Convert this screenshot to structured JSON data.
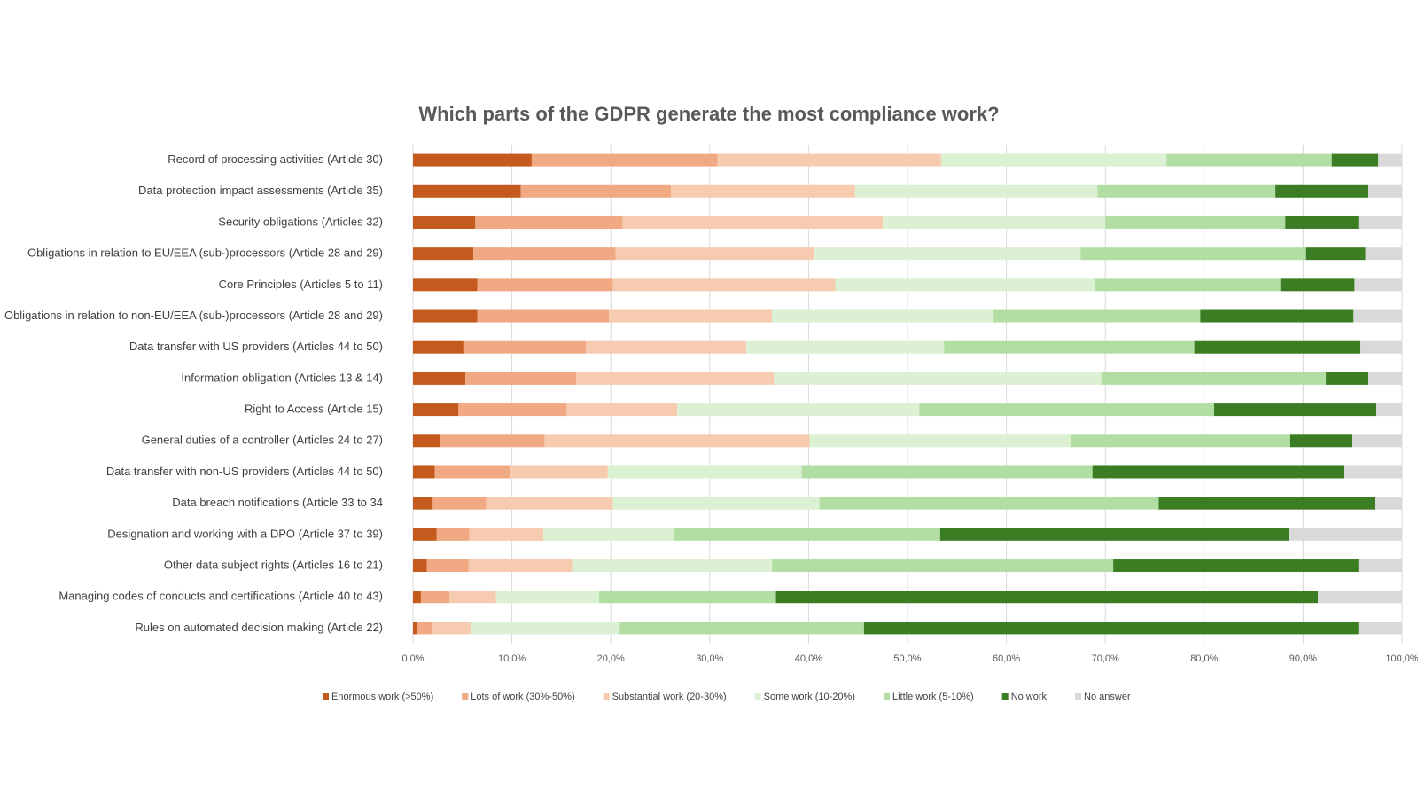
{
  "chart_data": {
    "type": "stacked_barh_100",
    "title": "Which parts of the GDPR generate the most compliance work?",
    "categories": [
      "Record of processing activities (Article 30)",
      "Data protection impact assessments (Article 35)",
      "Security obligations (Articles 32)",
      "Obligations in relation to EU/EEA (sub-)processors (Article 28 and 29)",
      "Core Principles (Articles 5 to 11)",
      "Obligations in relation to non-EU/EEA (sub-)processors (Article 28 and 29)",
      "Data transfer with US providers (Articles 44 to 50)",
      "Information obligation (Articles 13 & 14)",
      "Right to Access (Article 15)",
      "General duties of a controller (Articles 24 to 27)",
      "Data transfer with non-US providers (Articles 44 to 50)",
      "Data breach notifications (Article 33 to 34",
      "Designation and working with a DPO (Article 37 to 39)",
      "Other data subject rights (Articles 16 to 21)",
      "Managing codes of conducts and certifications (Article 40 to 43)",
      "Rules on automated decision making (Article 22)"
    ],
    "series": [
      {
        "name": "Enormous work (>50%)",
        "color": "#c55a1e",
        "values": [
          12.0,
          10.9,
          6.3,
          6.1,
          6.5,
          6.5,
          5.1,
          5.3,
          4.6,
          2.7,
          2.2,
          2.0,
          2.4,
          1.4,
          0.8,
          0.4
        ]
      },
      {
        "name": "Lots of work (30%-50%)",
        "color": "#f0a983",
        "values": [
          18.8,
          15.2,
          14.9,
          14.4,
          13.7,
          13.3,
          12.4,
          11.2,
          10.9,
          10.6,
          7.6,
          5.4,
          3.3,
          4.2,
          2.9,
          1.6
        ]
      },
      {
        "name": "Substantial work (20-30%)",
        "color": "#f6cbb0",
        "values": [
          22.6,
          18.6,
          26.3,
          20.1,
          22.5,
          16.5,
          16.2,
          20.0,
          11.2,
          26.8,
          9.9,
          12.8,
          7.5,
          10.5,
          4.7,
          3.9
        ]
      },
      {
        "name": "Some work (10-20%)",
        "color": "#dcf0d4",
        "values": [
          22.8,
          24.5,
          22.5,
          26.9,
          26.3,
          22.4,
          20.0,
          33.1,
          24.5,
          26.4,
          19.6,
          20.9,
          13.2,
          20.2,
          10.4,
          15.0
        ]
      },
      {
        "name": "Little work (5-10%)",
        "color": "#b3dea3",
        "values": [
          16.7,
          18.0,
          18.2,
          22.8,
          18.7,
          20.9,
          25.3,
          22.7,
          29.8,
          22.2,
          29.4,
          34.3,
          26.9,
          34.5,
          17.9,
          24.7
        ]
      },
      {
        "name": "No work",
        "color": "#3b7d23",
        "values": [
          4.7,
          9.4,
          7.4,
          6.0,
          7.5,
          15.5,
          16.8,
          4.3,
          16.4,
          6.2,
          25.4,
          21.9,
          35.3,
          24.8,
          54.8,
          50.0
        ]
      },
      {
        "name": "No answer",
        "color": "#d9d9d9",
        "values": [
          2.4,
          3.4,
          4.4,
          3.7,
          4.8,
          4.9,
          4.2,
          3.4,
          2.6,
          5.1,
          5.9,
          2.7,
          11.4,
          4.4,
          8.5,
          4.4
        ]
      }
    ],
    "xlim": [
      0,
      100
    ],
    "xticks": [
      {
        "value": 0,
        "label": "0,0%"
      },
      {
        "value": 10,
        "label": "10,0%"
      },
      {
        "value": 20,
        "label": "20,0%"
      },
      {
        "value": 30,
        "label": "30,0%"
      },
      {
        "value": 40,
        "label": "40,0%"
      },
      {
        "value": 50,
        "label": "50,0%"
      },
      {
        "value": 60,
        "label": "60,0%"
      },
      {
        "value": 70,
        "label": "70,0%"
      },
      {
        "value": 80,
        "label": "80,0%"
      },
      {
        "value": 90,
        "label": "90,0%"
      },
      {
        "value": 100,
        "label": "100,0%"
      }
    ],
    "grid": true
  }
}
